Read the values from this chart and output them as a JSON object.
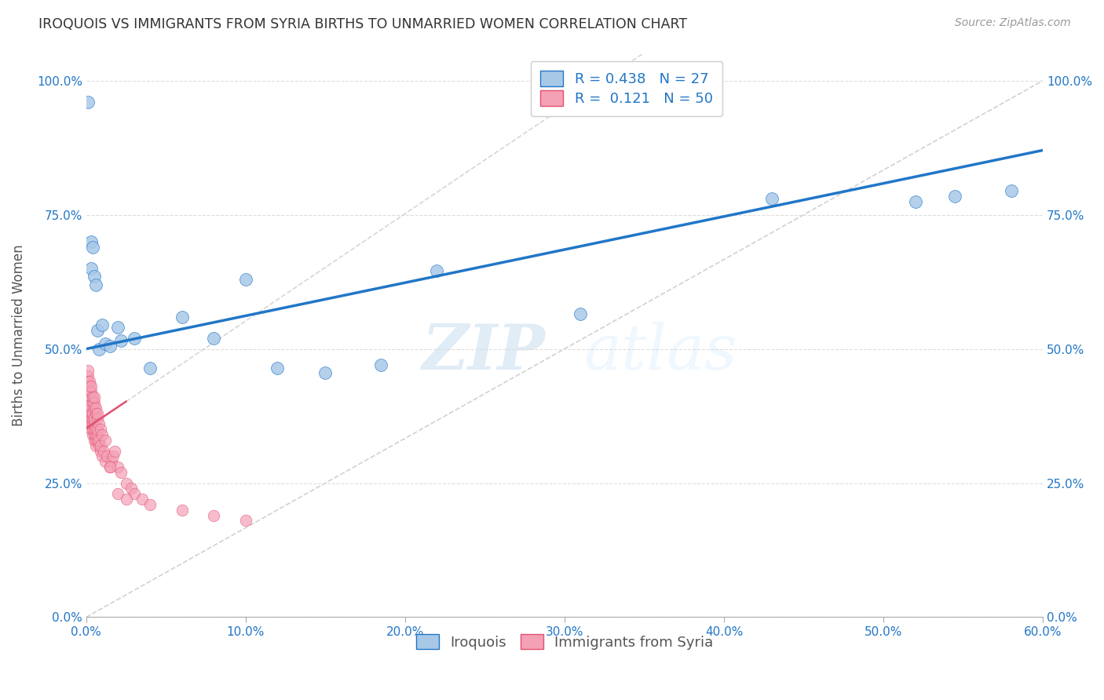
{
  "title": "IROQUOIS VS IMMIGRANTS FROM SYRIA BIRTHS TO UNMARRIED WOMEN CORRELATION CHART",
  "source": "Source: ZipAtlas.com",
  "ylabel": "Births to Unmarried Women",
  "xlabel_ticks": [
    "0.0%",
    "10.0%",
    "20.0%",
    "30.0%",
    "40.0%",
    "50.0%",
    "60.0%"
  ],
  "ytick_labels": [
    "0.0%",
    "25.0%",
    "50.0%",
    "75.0%",
    "100.0%"
  ],
  "xlim": [
    0.0,
    0.6
  ],
  "ylim": [
    0.0,
    1.05
  ],
  "legend_r1": "R = 0.438",
  "legend_n1": "N = 27",
  "legend_r2": "R =  0.121",
  "legend_n2": "N = 50",
  "series1_label": "Iroquois",
  "series2_label": "Immigrants from Syria",
  "color_blue": "#a8c8e8",
  "color_pink": "#f4a0b5",
  "color_blue_line": "#2176c7",
  "color_pink_line": "#e05070",
  "color_diag": "#cccccc",
  "axis_label_color": "#2176c7",
  "watermark_zip": "ZIP",
  "watermark_atlas": "atlas",
  "iroquois_x": [
    0.001,
    0.003,
    0.003,
    0.004,
    0.005,
    0.006,
    0.007,
    0.008,
    0.01,
    0.012,
    0.015,
    0.02,
    0.022,
    0.03,
    0.04,
    0.06,
    0.08,
    0.1,
    0.12,
    0.15,
    0.185,
    0.22,
    0.31,
    0.43,
    0.52,
    0.545,
    0.58
  ],
  "iroquois_y": [
    0.96,
    0.7,
    0.65,
    0.69,
    0.635,
    0.62,
    0.535,
    0.5,
    0.545,
    0.51,
    0.505,
    0.54,
    0.515,
    0.52,
    0.465,
    0.56,
    0.52,
    0.63,
    0.465,
    0.455,
    0.47,
    0.645,
    0.565,
    0.78,
    0.775,
    0.785,
    0.795
  ],
  "syria_x": [
    0.001,
    0.001,
    0.001,
    0.002,
    0.002,
    0.002,
    0.002,
    0.003,
    0.003,
    0.003,
    0.003,
    0.004,
    0.004,
    0.004,
    0.004,
    0.004,
    0.005,
    0.005,
    0.005,
    0.005,
    0.005,
    0.006,
    0.006,
    0.006,
    0.006,
    0.007,
    0.007,
    0.007,
    0.008,
    0.008,
    0.009,
    0.009,
    0.01,
    0.011,
    0.012,
    0.013,
    0.015,
    0.016,
    0.017,
    0.018,
    0.02,
    0.022,
    0.025,
    0.028,
    0.03,
    0.035,
    0.04,
    0.06,
    0.08,
    0.1
  ],
  "syria_y": [
    0.37,
    0.38,
    0.39,
    0.365,
    0.375,
    0.385,
    0.395,
    0.35,
    0.36,
    0.37,
    0.38,
    0.34,
    0.35,
    0.36,
    0.37,
    0.38,
    0.33,
    0.34,
    0.35,
    0.36,
    0.37,
    0.32,
    0.33,
    0.34,
    0.35,
    0.33,
    0.34,
    0.35,
    0.32,
    0.33,
    0.31,
    0.32,
    0.3,
    0.31,
    0.29,
    0.3,
    0.28,
    0.29,
    0.3,
    0.31,
    0.28,
    0.27,
    0.25,
    0.24,
    0.23,
    0.22,
    0.21,
    0.2,
    0.19,
    0.18
  ],
  "syria_extra_x": [
    0.001,
    0.001,
    0.001,
    0.002,
    0.002,
    0.002,
    0.003,
    0.003,
    0.003,
    0.004,
    0.004,
    0.005,
    0.005,
    0.005,
    0.006,
    0.006,
    0.007,
    0.007,
    0.008,
    0.009,
    0.01,
    0.012,
    0.015,
    0.02,
    0.025
  ],
  "syria_extra_y": [
    0.44,
    0.45,
    0.46,
    0.42,
    0.43,
    0.44,
    0.41,
    0.42,
    0.43,
    0.4,
    0.41,
    0.39,
    0.4,
    0.41,
    0.38,
    0.39,
    0.37,
    0.38,
    0.36,
    0.35,
    0.34,
    0.33,
    0.28,
    0.23,
    0.22
  ]
}
